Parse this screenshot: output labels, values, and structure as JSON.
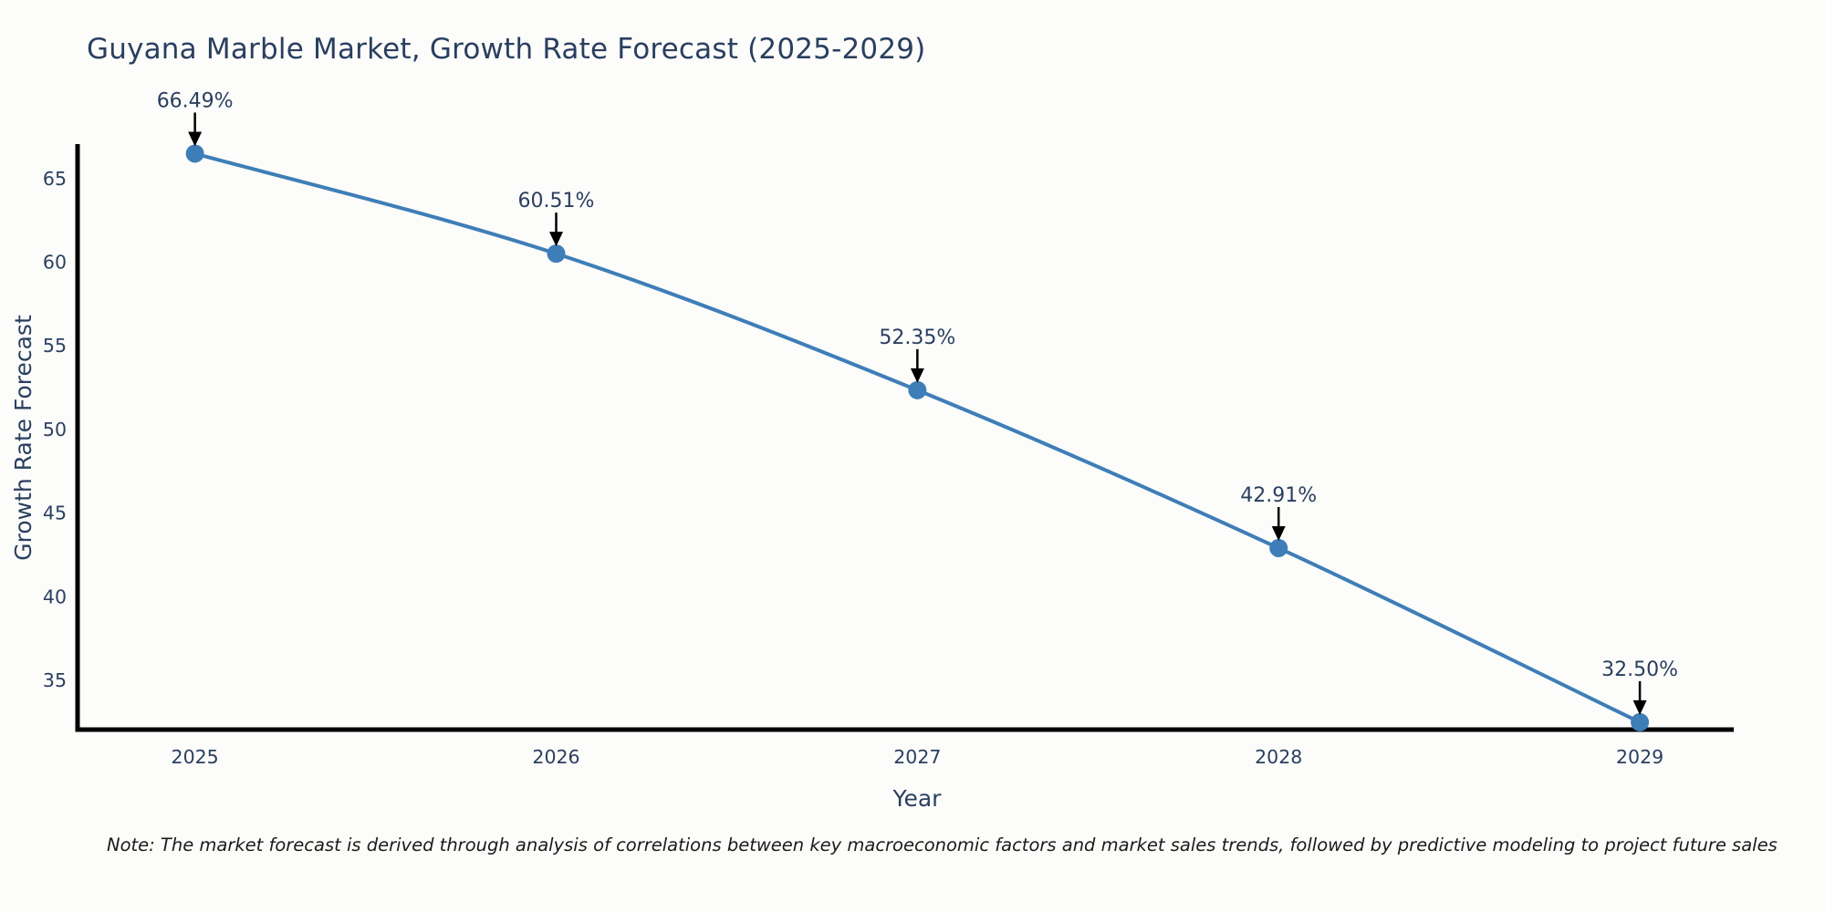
{
  "title": "Guyana Marble Market, Growth Rate Forecast (2025-2029)",
  "note": "Note: The market forecast is derived through analysis of correlations between key macroeconomic factors and market sales trends, followed by predictive modeling to project future sales",
  "chart_data": {
    "type": "line",
    "title": "Guyana Marble Market, Growth Rate Forecast (2025-2029)",
    "xlabel": "Year",
    "ylabel": "Growth Rate Forecast",
    "x": [
      2025,
      2026,
      2027,
      2028,
      2029
    ],
    "values": [
      66.49,
      60.51,
      52.35,
      42.91,
      32.5
    ],
    "point_labels": [
      "66.49%",
      "60.51%",
      "52.35%",
      "42.91%",
      "32.50%"
    ],
    "xticks": [
      "2025",
      "2026",
      "2027",
      "2028",
      "2029"
    ],
    "yticks": [
      65,
      60,
      55,
      50,
      45,
      40,
      35
    ],
    "xlim": [
      2024.67,
      2029.26
    ],
    "ylim": [
      32.06,
      66.95
    ],
    "grid": false,
    "legend_position": "none",
    "line_color": "#3E7EB8",
    "marker_color": "#3E7EB8",
    "axis_color": "#000000",
    "tick_label_color": "#2a3f5f",
    "annotation_text_color": "#2a3f5f",
    "annotation_arrow_color": "#000000"
  }
}
